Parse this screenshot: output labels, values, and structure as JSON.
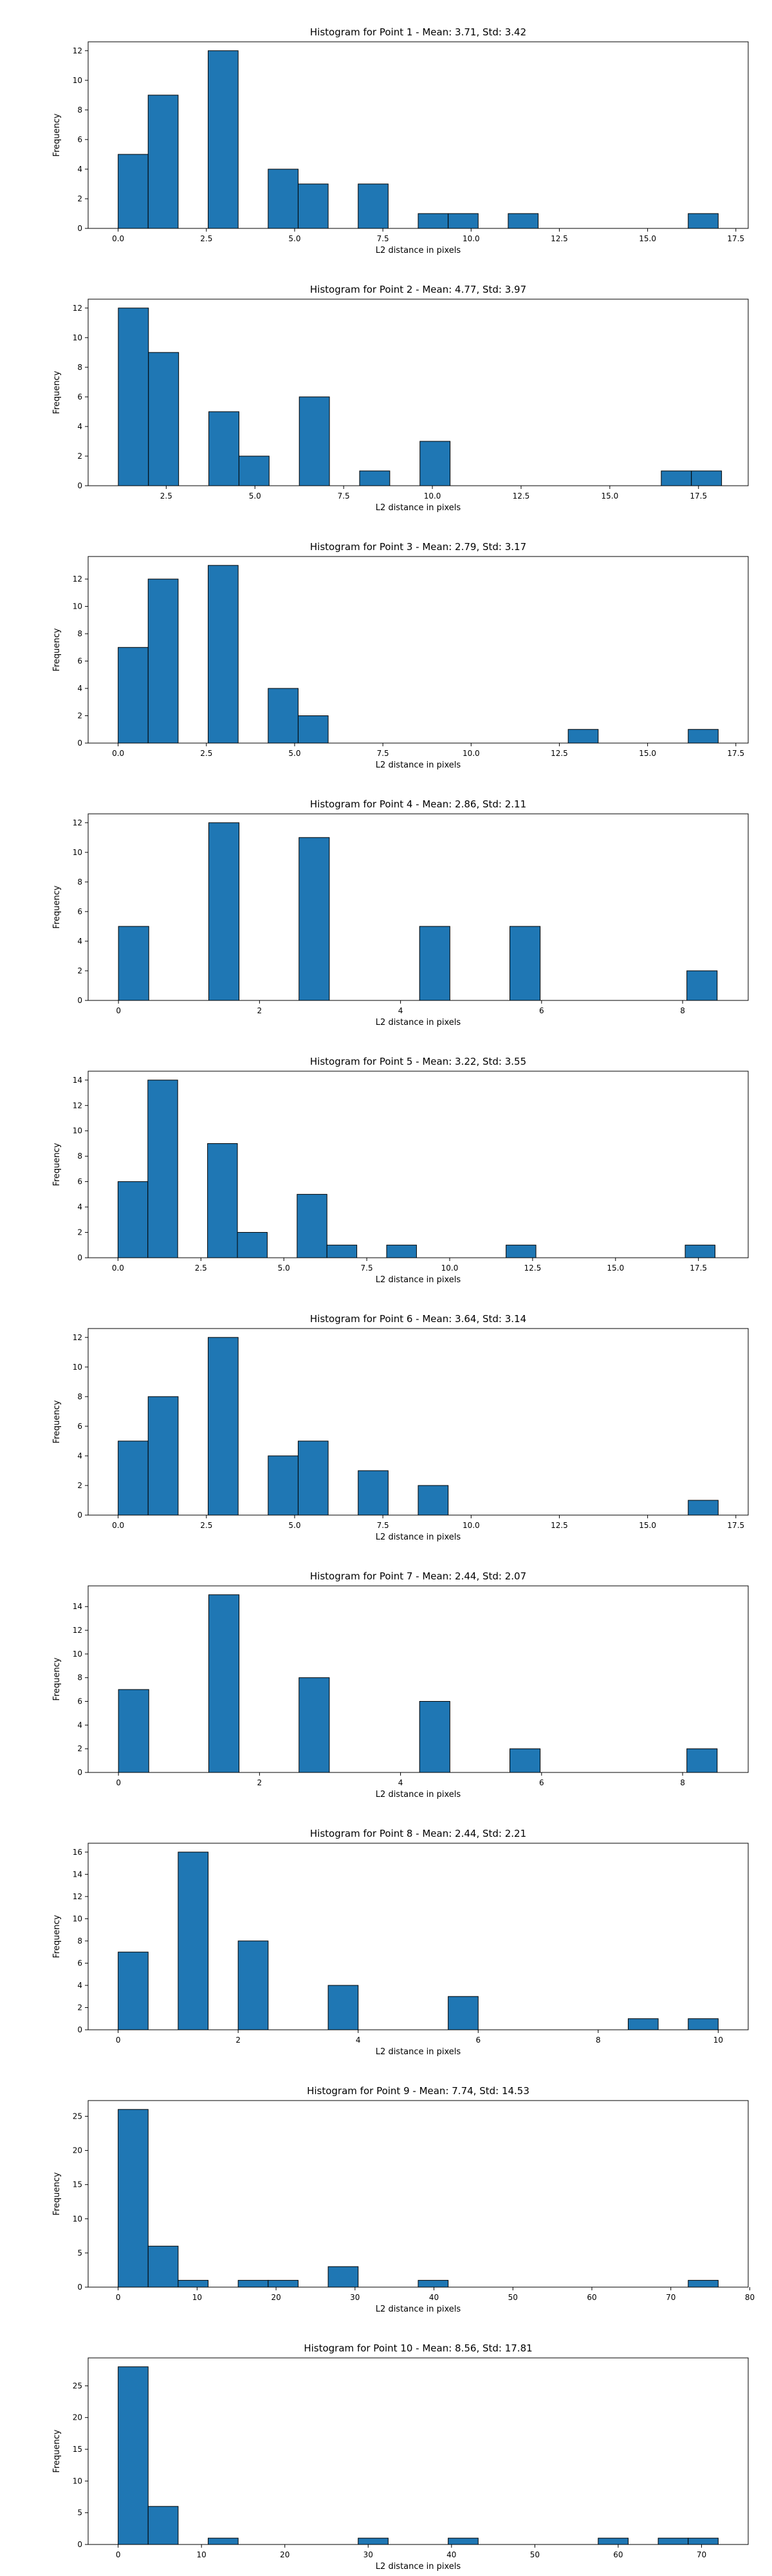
{
  "chart_data": [
    {
      "type": "bar",
      "title": "Histogram for Point 1 - Mean: 3.71, Std: 3.42",
      "xlabel": "L2 distance in pixels",
      "ylabel": "Frequency",
      "xlim": [
        -0.85,
        17.85
      ],
      "ylim": [
        0,
        12.6
      ],
      "xticks": [
        0,
        2.5,
        5,
        7.5,
        10,
        12.5,
        15,
        17.5
      ],
      "xtick_labels": [
        "0.0",
        "2.5",
        "5.0",
        "7.5",
        "10.0",
        "12.5",
        "15.0",
        "17.5"
      ],
      "yticks": [
        0,
        2,
        4,
        6,
        8,
        10,
        12
      ],
      "ytick_labels": [
        "0",
        "2",
        "4",
        "6",
        "8",
        "10",
        "12"
      ],
      "bins": [
        {
          "x0": 0,
          "x1": 0.85,
          "count": 5
        },
        {
          "x0": 0.85,
          "x1": 1.7,
          "count": 9
        },
        {
          "x0": 2.55,
          "x1": 3.4,
          "count": 12
        },
        {
          "x0": 4.25,
          "x1": 5.1,
          "count": 4
        },
        {
          "x0": 5.1,
          "x1": 5.95,
          "count": 3
        },
        {
          "x0": 6.8,
          "x1": 7.65,
          "count": 3
        },
        {
          "x0": 8.5,
          "x1": 9.35,
          "count": 1
        },
        {
          "x0": 9.35,
          "x1": 10.2,
          "count": 1
        },
        {
          "x0": 11.05,
          "x1": 11.9,
          "count": 1
        },
        {
          "x0": 16.15,
          "x1": 17,
          "count": 1
        }
      ]
    },
    {
      "type": "bar",
      "title": "Histogram for Point 2 - Mean: 4.77, Std: 3.97",
      "xlabel": "L2 distance in pixels",
      "ylabel": "Frequency",
      "xlim": [
        0.3,
        18.9
      ],
      "ylim": [
        0,
        12.6
      ],
      "xticks": [
        2.5,
        5,
        7.5,
        10,
        12.5,
        15,
        17.5
      ],
      "xtick_labels": [
        "2.5",
        "5.0",
        "7.5",
        "10.0",
        "12.5",
        "15.0",
        "17.5"
      ],
      "yticks": [
        0,
        2,
        4,
        6,
        8,
        10,
        12
      ],
      "ytick_labels": [
        "0",
        "2",
        "4",
        "6",
        "8",
        "10",
        "12"
      ],
      "bins": [
        {
          "x0": 1.15,
          "x1": 2,
          "count": 12
        },
        {
          "x0": 2,
          "x1": 2.85,
          "count": 9
        },
        {
          "x0": 3.7,
          "x1": 4.55,
          "count": 5
        },
        {
          "x0": 4.55,
          "x1": 5.4,
          "count": 2
        },
        {
          "x0": 6.25,
          "x1": 7.1,
          "count": 6
        },
        {
          "x0": 7.95,
          "x1": 8.8,
          "count": 1
        },
        {
          "x0": 9.65,
          "x1": 10.5,
          "count": 3
        },
        {
          "x0": 16.45,
          "x1": 17.3,
          "count": 1
        },
        {
          "x0": 17.3,
          "x1": 18.15,
          "count": 1
        }
      ]
    },
    {
      "type": "bar",
      "title": "Histogram for Point 3 - Mean: 2.79, Std: 3.17",
      "xlabel": "L2 distance in pixels",
      "ylabel": "Frequency",
      "xlim": [
        -0.85,
        17.85
      ],
      "ylim": [
        0,
        13.65
      ],
      "xticks": [
        0,
        2.5,
        5,
        7.5,
        10,
        12.5,
        15,
        17.5
      ],
      "xtick_labels": [
        "0.0",
        "2.5",
        "5.0",
        "7.5",
        "10.0",
        "12.5",
        "15.0",
        "17.5"
      ],
      "yticks": [
        0,
        2,
        4,
        6,
        8,
        10,
        12
      ],
      "ytick_labels": [
        "0",
        "2",
        "4",
        "6",
        "8",
        "10",
        "12"
      ],
      "bins": [
        {
          "x0": 0,
          "x1": 0.85,
          "count": 7
        },
        {
          "x0": 0.85,
          "x1": 1.7,
          "count": 12
        },
        {
          "x0": 2.55,
          "x1": 3.4,
          "count": 13
        },
        {
          "x0": 4.25,
          "x1": 5.1,
          "count": 4
        },
        {
          "x0": 5.1,
          "x1": 5.95,
          "count": 2
        },
        {
          "x0": 12.75,
          "x1": 13.6,
          "count": 1
        },
        {
          "x0": 16.15,
          "x1": 17,
          "count": 1
        }
      ]
    },
    {
      "type": "bar",
      "title": "Histogram for Point 4 - Mean: 2.86, Std: 2.11",
      "xlabel": "L2 distance in pixels",
      "ylabel": "Frequency",
      "xlim": [
        -0.43,
        8.93
      ],
      "ylim": [
        0,
        12.6
      ],
      "xticks": [
        0,
        2,
        4,
        6,
        8
      ],
      "xtick_labels": [
        "0",
        "2",
        "4",
        "6",
        "8"
      ],
      "yticks": [
        0,
        2,
        4,
        6,
        8,
        10,
        12
      ],
      "ytick_labels": [
        "0",
        "2",
        "4",
        "6",
        "8",
        "10",
        "12"
      ],
      "bins": [
        {
          "x0": 0,
          "x1": 0.43,
          "count": 5
        },
        {
          "x0": 1.28,
          "x1": 1.71,
          "count": 12
        },
        {
          "x0": 2.56,
          "x1": 2.99,
          "count": 11
        },
        {
          "x0": 4.27,
          "x1": 4.7,
          "count": 5
        },
        {
          "x0": 5.55,
          "x1": 5.98,
          "count": 5
        },
        {
          "x0": 8.06,
          "x1": 8.49,
          "count": 2
        }
      ]
    },
    {
      "type": "bar",
      "title": "Histogram for Point 5 - Mean: 3.22, Std: 3.55",
      "xlabel": "L2 distance in pixels",
      "ylabel": "Frequency",
      "xlim": [
        -0.9,
        19.0
      ],
      "ylim": [
        0,
        14.7
      ],
      "xticks": [
        0,
        2.5,
        5,
        7.5,
        10,
        12.5,
        15,
        17.5
      ],
      "xtick_labels": [
        "0.0",
        "2.5",
        "5.0",
        "7.5",
        "10.0",
        "12.5",
        "15.0",
        "17.5"
      ],
      "yticks": [
        0,
        2,
        4,
        6,
        8,
        10,
        12,
        14
      ],
      "ytick_labels": [
        "0",
        "2",
        "4",
        "6",
        "8",
        "10",
        "12",
        "14"
      ],
      "bins": [
        {
          "x0": 0,
          "x1": 0.9,
          "count": 6
        },
        {
          "x0": 0.9,
          "x1": 1.8,
          "count": 14
        },
        {
          "x0": 2.7,
          "x1": 3.6,
          "count": 9
        },
        {
          "x0": 3.6,
          "x1": 4.5,
          "count": 2
        },
        {
          "x0": 5.4,
          "x1": 6.3,
          "count": 5
        },
        {
          "x0": 6.3,
          "x1": 7.2,
          "count": 1
        },
        {
          "x0": 8.1,
          "x1": 9,
          "count": 1
        },
        {
          "x0": 11.7,
          "x1": 12.6,
          "count": 1
        },
        {
          "x0": 17.1,
          "x1": 18,
          "count": 1
        }
      ]
    },
    {
      "type": "bar",
      "title": "Histogram for Point 6 - Mean: 3.64, Std: 3.14",
      "xlabel": "L2 distance in pixels",
      "ylabel": "Frequency",
      "xlim": [
        -0.85,
        17.85
      ],
      "ylim": [
        0,
        12.6
      ],
      "xticks": [
        0,
        2.5,
        5,
        7.5,
        10,
        12.5,
        15,
        17.5
      ],
      "xtick_labels": [
        "0.0",
        "2.5",
        "5.0",
        "7.5",
        "10.0",
        "12.5",
        "15.0",
        "17.5"
      ],
      "yticks": [
        0,
        2,
        4,
        6,
        8,
        10,
        12
      ],
      "ytick_labels": [
        "0",
        "2",
        "4",
        "6",
        "8",
        "10",
        "12"
      ],
      "bins": [
        {
          "x0": 0,
          "x1": 0.85,
          "count": 5
        },
        {
          "x0": 0.85,
          "x1": 1.7,
          "count": 8
        },
        {
          "x0": 2.55,
          "x1": 3.4,
          "count": 12
        },
        {
          "x0": 4.25,
          "x1": 5.1,
          "count": 4
        },
        {
          "x0": 5.1,
          "x1": 5.95,
          "count": 5
        },
        {
          "x0": 6.8,
          "x1": 7.65,
          "count": 3
        },
        {
          "x0": 8.5,
          "x1": 9.35,
          "count": 2
        },
        {
          "x0": 16.15,
          "x1": 17,
          "count": 1
        }
      ]
    },
    {
      "type": "bar",
      "title": "Histogram for Point 7 - Mean: 2.44, Std: 2.07",
      "xlabel": "L2 distance in pixels",
      "ylabel": "Frequency",
      "xlim": [
        -0.43,
        8.93
      ],
      "ylim": [
        0,
        15.75
      ],
      "xticks": [
        0,
        2,
        4,
        6,
        8
      ],
      "xtick_labels": [
        "0",
        "2",
        "4",
        "6",
        "8"
      ],
      "yticks": [
        0,
        2,
        4,
        6,
        8,
        10,
        12,
        14
      ],
      "ytick_labels": [
        "0",
        "2",
        "4",
        "6",
        "8",
        "10",
        "12",
        "14"
      ],
      "bins": [
        {
          "x0": 0,
          "x1": 0.43,
          "count": 7
        },
        {
          "x0": 1.28,
          "x1": 1.71,
          "count": 15
        },
        {
          "x0": 2.56,
          "x1": 2.99,
          "count": 8
        },
        {
          "x0": 4.27,
          "x1": 4.7,
          "count": 6
        },
        {
          "x0": 5.55,
          "x1": 5.98,
          "count": 2
        },
        {
          "x0": 8.06,
          "x1": 8.49,
          "count": 2
        }
      ]
    },
    {
      "type": "bar",
      "title": "Histogram for Point 8 - Mean: 2.44, Std: 2.21",
      "xlabel": "L2 distance in pixels",
      "ylabel": "Frequency",
      "xlim": [
        -0.5,
        10.5
      ],
      "ylim": [
        0,
        16.8
      ],
      "xticks": [
        0,
        2,
        4,
        6,
        8,
        10
      ],
      "xtick_labels": [
        "0",
        "2",
        "4",
        "6",
        "8",
        "10"
      ],
      "yticks": [
        0,
        2,
        4,
        6,
        8,
        10,
        12,
        14,
        16
      ],
      "ytick_labels": [
        "0",
        "2",
        "4",
        "6",
        "8",
        "10",
        "12",
        "14",
        "16"
      ],
      "bins": [
        {
          "x0": 0,
          "x1": 0.5,
          "count": 7
        },
        {
          "x0": 1,
          "x1": 1.5,
          "count": 16
        },
        {
          "x0": 2,
          "x1": 2.5,
          "count": 8
        },
        {
          "x0": 3.5,
          "x1": 4,
          "count": 4
        },
        {
          "x0": 5.5,
          "x1": 6,
          "count": 3
        },
        {
          "x0": 8.5,
          "x1": 9,
          "count": 1
        },
        {
          "x0": 9.5,
          "x1": 10,
          "count": 1
        }
      ]
    },
    {
      "type": "bar",
      "title": "Histogram for Point 9 - Mean: 7.74, Std: 14.53",
      "xlabel": "L2 distance in pixels",
      "ylabel": "Frequency",
      "xlim": [
        -3.8,
        79.8
      ],
      "ylim": [
        0,
        27.3
      ],
      "xticks": [
        0,
        10,
        20,
        30,
        40,
        50,
        60,
        70,
        80
      ],
      "xtick_labels": [
        "0",
        "10",
        "20",
        "30",
        "40",
        "50",
        "60",
        "70",
        "80"
      ],
      "yticks": [
        0,
        5,
        10,
        15,
        20,
        25
      ],
      "ytick_labels": [
        "0",
        "5",
        "10",
        "15",
        "20",
        "25"
      ],
      "bins": [
        {
          "x0": 0,
          "x1": 3.8,
          "count": 26
        },
        {
          "x0": 3.8,
          "x1": 7.6,
          "count": 6
        },
        {
          "x0": 7.6,
          "x1": 11.4,
          "count": 1
        },
        {
          "x0": 15.2,
          "x1": 19,
          "count": 1
        },
        {
          "x0": 19,
          "x1": 22.8,
          "count": 1
        },
        {
          "x0": 26.6,
          "x1": 30.4,
          "count": 3
        },
        {
          "x0": 38,
          "x1": 41.8,
          "count": 1
        },
        {
          "x0": 72.2,
          "x1": 76,
          "count": 1
        }
      ]
    },
    {
      "type": "bar",
      "title": "Histogram for Point 10 - Mean: 8.56, Std: 17.81",
      "xlabel": "L2 distance in pixels",
      "ylabel": "Frequency",
      "xlim": [
        -3.6,
        75.6
      ],
      "ylim": [
        0,
        29.4
      ],
      "xticks": [
        0,
        10,
        20,
        30,
        40,
        50,
        60,
        70
      ],
      "xtick_labels": [
        "0",
        "10",
        "20",
        "30",
        "40",
        "50",
        "60",
        "70"
      ],
      "yticks": [
        0,
        5,
        10,
        15,
        20,
        25
      ],
      "ytick_labels": [
        "0",
        "5",
        "10",
        "15",
        "20",
        "25"
      ],
      "bins": [
        {
          "x0": 0,
          "x1": 3.6,
          "count": 28
        },
        {
          "x0": 3.6,
          "x1": 7.2,
          "count": 6
        },
        {
          "x0": 10.8,
          "x1": 14.4,
          "count": 1
        },
        {
          "x0": 28.8,
          "x1": 32.4,
          "count": 1
        },
        {
          "x0": 39.6,
          "x1": 43.2,
          "count": 1
        },
        {
          "x0": 57.6,
          "x1": 61.2,
          "count": 1
        },
        {
          "x0": 64.8,
          "x1": 68.4,
          "count": 1
        },
        {
          "x0": 68.4,
          "x1": 72,
          "count": 1
        }
      ]
    }
  ],
  "colors": {
    "bar_fill": "#1f77b4",
    "bar_edge": "#000000"
  }
}
